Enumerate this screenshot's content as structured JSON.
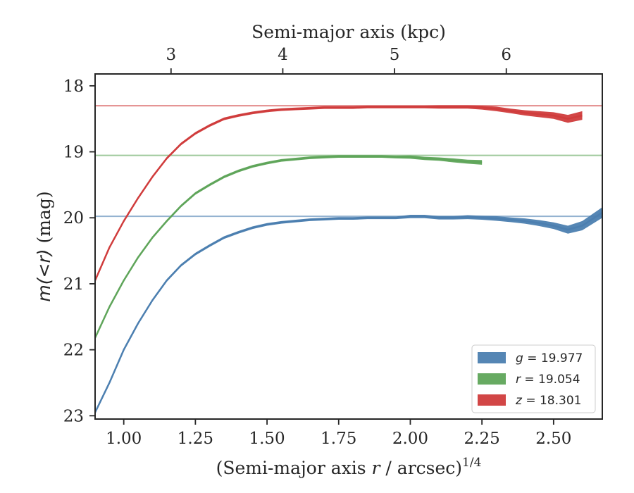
{
  "chart_data": {
    "type": "line",
    "xlabel": "(Semi-major axis r / arcsec)",
    "xlabel_prefix": "(Semi-major axis ",
    "xlabel_var": "r",
    "xlabel_suffix": " / arcsec)",
    "xlabel_exp": "1/4",
    "ylabel": "m(<r) (mag)",
    "ylabel_math": "m(<r)",
    "ylabel_unit": " (mag)",
    "top_xlabel": "Semi-major axis (kpc)",
    "xlim": [
      0.9,
      2.67
    ],
    "ylim": [
      23.05,
      17.82
    ],
    "y_inverted": true,
    "x_ticks": [
      1.0,
      1.25,
      1.5,
      1.75,
      2.0,
      2.25,
      2.5
    ],
    "x_tick_labels": [
      "1.00",
      "1.25",
      "1.50",
      "1.75",
      "2.00",
      "2.25",
      "2.50"
    ],
    "y_ticks": [
      18,
      19,
      20,
      21,
      22,
      23
    ],
    "y_tick_labels": [
      "18",
      "19",
      "20",
      "21",
      "22",
      "23"
    ],
    "top_ticks_x": [
      1.165,
      1.555,
      1.945,
      2.335
    ],
    "top_tick_labels": [
      "3",
      "4",
      "5",
      "6"
    ],
    "grid": false,
    "legend_position": "bottom-right",
    "series": [
      {
        "name": "g = 19.977",
        "label_var": "g",
        "label_value": " = 19.977",
        "color": "#4c7fb0",
        "asymptote": 19.977,
        "x": [
          0.9,
          0.95,
          1.0,
          1.05,
          1.1,
          1.15,
          1.2,
          1.25,
          1.3,
          1.35,
          1.4,
          1.45,
          1.5,
          1.55,
          1.6,
          1.65,
          1.7,
          1.75,
          1.8,
          1.85,
          1.9,
          1.95,
          2.0,
          2.05,
          2.1,
          2.15,
          2.2,
          2.25,
          2.3,
          2.35,
          2.4,
          2.45,
          2.5,
          2.55,
          2.6,
          2.67
        ],
        "y": [
          22.95,
          22.5,
          22.0,
          21.6,
          21.25,
          20.95,
          20.72,
          20.55,
          20.42,
          20.3,
          20.22,
          20.15,
          20.1,
          20.07,
          20.05,
          20.03,
          20.02,
          20.01,
          20.01,
          20.0,
          20.0,
          20.0,
          19.98,
          19.98,
          20.0,
          20.0,
          19.99,
          20.0,
          20.01,
          20.03,
          20.05,
          20.08,
          20.12,
          20.18,
          20.12,
          19.92
        ],
        "band": [
          0.02,
          0.02,
          0.02,
          0.02,
          0.02,
          0.02,
          0.02,
          0.02,
          0.02,
          0.02,
          0.02,
          0.02,
          0.02,
          0.02,
          0.02,
          0.02,
          0.02,
          0.02,
          0.02,
          0.02,
          0.02,
          0.02,
          0.025,
          0.025,
          0.025,
          0.025,
          0.03,
          0.03,
          0.035,
          0.035,
          0.04,
          0.045,
          0.05,
          0.06,
          0.07,
          0.08
        ]
      },
      {
        "name": "r = 19.054",
        "label_var": "r",
        "label_value": " = 19.054",
        "color": "#5fa55a",
        "asymptote": 19.054,
        "x": [
          0.9,
          0.95,
          1.0,
          1.05,
          1.1,
          1.15,
          1.2,
          1.25,
          1.3,
          1.35,
          1.4,
          1.45,
          1.5,
          1.55,
          1.6,
          1.65,
          1.7,
          1.75,
          1.8,
          1.85,
          1.9,
          1.95,
          2.0,
          2.05,
          2.1,
          2.15,
          2.2,
          2.25
        ],
        "y": [
          21.82,
          21.35,
          20.95,
          20.6,
          20.3,
          20.05,
          19.82,
          19.63,
          19.5,
          19.38,
          19.29,
          19.22,
          19.17,
          19.13,
          19.11,
          19.09,
          19.08,
          19.07,
          19.07,
          19.07,
          19.07,
          19.08,
          19.08,
          19.1,
          19.11,
          19.13,
          19.15,
          19.16
        ],
        "band": [
          0.02,
          0.02,
          0.02,
          0.02,
          0.02,
          0.02,
          0.02,
          0.02,
          0.02,
          0.02,
          0.02,
          0.02,
          0.02,
          0.02,
          0.02,
          0.02,
          0.02,
          0.02,
          0.02,
          0.02,
          0.02,
          0.02,
          0.025,
          0.025,
          0.025,
          0.03,
          0.03,
          0.035
        ]
      },
      {
        "name": "z = 18.301",
        "label_var": "z",
        "label_value": " = 18.301",
        "color": "#d03c3c",
        "asymptote": 18.301,
        "x": [
          0.9,
          0.95,
          1.0,
          1.05,
          1.1,
          1.15,
          1.2,
          1.25,
          1.3,
          1.35,
          1.4,
          1.45,
          1.5,
          1.55,
          1.6,
          1.65,
          1.7,
          1.75,
          1.8,
          1.85,
          1.9,
          1.95,
          2.0,
          2.05,
          2.1,
          2.15,
          2.2,
          2.25,
          2.3,
          2.35,
          2.4,
          2.45,
          2.5,
          2.55,
          2.6
        ],
        "y": [
          20.95,
          20.45,
          20.05,
          19.7,
          19.38,
          19.1,
          18.88,
          18.72,
          18.6,
          18.5,
          18.45,
          18.41,
          18.38,
          18.36,
          18.35,
          18.34,
          18.33,
          18.33,
          18.33,
          18.32,
          18.32,
          18.32,
          18.32,
          18.32,
          18.32,
          18.32,
          18.32,
          18.33,
          18.35,
          18.38,
          18.41,
          18.43,
          18.45,
          18.5,
          18.45
        ],
        "band": [
          0.02,
          0.02,
          0.02,
          0.02,
          0.02,
          0.02,
          0.02,
          0.02,
          0.02,
          0.02,
          0.02,
          0.02,
          0.02,
          0.02,
          0.02,
          0.02,
          0.02,
          0.02,
          0.02,
          0.02,
          0.02,
          0.02,
          0.02,
          0.02,
          0.025,
          0.025,
          0.025,
          0.03,
          0.035,
          0.035,
          0.04,
          0.045,
          0.05,
          0.06,
          0.065
        ]
      }
    ]
  }
}
